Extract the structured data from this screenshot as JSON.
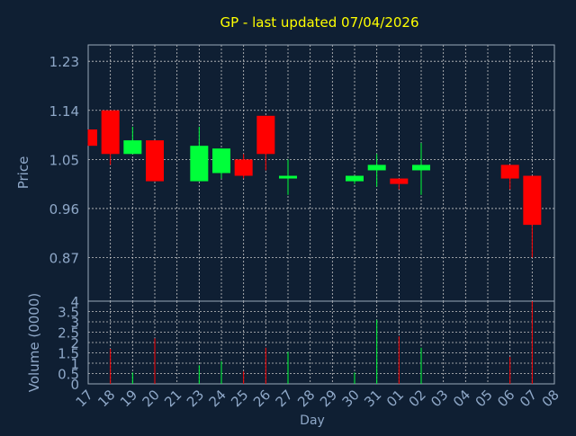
{
  "chart_data": {
    "type": "candlestick",
    "title": "GP - last updated 07/04/2026",
    "xlabel": "Day",
    "x_ticks": [
      "17",
      "18",
      "19",
      "20",
      "21",
      "23",
      "24",
      "25",
      "26",
      "27",
      "28",
      "29",
      "30",
      "31",
      "01",
      "02",
      "03",
      "04",
      "05",
      "06",
      "07",
      "08"
    ],
    "price": {
      "ylabel": "Price",
      "y_ticks": [
        "1.23",
        "1.14",
        "1.05",
        "0.96",
        "0.87"
      ],
      "ylim": [
        0.79,
        1.26
      ],
      "candles": [
        {
          "day": "17",
          "open": 1.105,
          "high": 1.105,
          "low": 1.075,
          "close": 1.075,
          "direction": "down"
        },
        {
          "day": "18",
          "open": 1.14,
          "high": 1.14,
          "low": 1.04,
          "close": 1.06,
          "direction": "down"
        },
        {
          "day": "19",
          "open": 1.06,
          "high": 1.11,
          "low": 1.06,
          "close": 1.085,
          "direction": "up"
        },
        {
          "day": "20",
          "open": 1.085,
          "high": 1.085,
          "low": 1.01,
          "close": 1.01,
          "direction": "down"
        },
        {
          "day": "23",
          "open": 1.01,
          "high": 1.11,
          "low": 1.01,
          "close": 1.075,
          "direction": "up"
        },
        {
          "day": "24",
          "open": 1.025,
          "high": 1.07,
          "low": 1.015,
          "close": 1.07,
          "direction": "up"
        },
        {
          "day": "25",
          "open": 1.05,
          "high": 1.06,
          "low": 1.015,
          "close": 1.02,
          "direction": "down"
        },
        {
          "day": "26",
          "open": 1.13,
          "high": 1.13,
          "low": 1.03,
          "close": 1.06,
          "direction": "down"
        },
        {
          "day": "27",
          "open": 1.015,
          "high": 1.05,
          "low": 0.985,
          "close": 1.02,
          "direction": "up"
        },
        {
          "day": "30",
          "open": 1.01,
          "high": 1.02,
          "low": 1.005,
          "close": 1.02,
          "direction": "up"
        },
        {
          "day": "31",
          "open": 1.03,
          "high": 1.06,
          "low": 1.0,
          "close": 1.04,
          "direction": "up"
        },
        {
          "day": "01",
          "open": 1.015,
          "high": 1.015,
          "low": 0.995,
          "close": 1.005,
          "direction": "down"
        },
        {
          "day": "02",
          "open": 1.03,
          "high": 1.08,
          "low": 0.985,
          "close": 1.04,
          "direction": "up"
        },
        {
          "day": "06",
          "open": 1.04,
          "high": 1.04,
          "low": 0.995,
          "close": 1.015,
          "direction": "down"
        },
        {
          "day": "07",
          "open": 1.02,
          "high": 1.02,
          "low": 0.87,
          "close": 0.93,
          "direction": "down"
        }
      ]
    },
    "volume": {
      "ylabel": "Volume (0000)",
      "y_ticks": [
        "4",
        "3.5",
        "3",
        "2.5",
        "2",
        "1.5",
        "1",
        "0.5",
        "0"
      ],
      "ylim": [
        0,
        4
      ],
      "bars": [
        {
          "day": "18",
          "value": 1.7,
          "direction": "down"
        },
        {
          "day": "19",
          "value": 0.55,
          "direction": "up"
        },
        {
          "day": "20",
          "value": 2.2,
          "direction": "down"
        },
        {
          "day": "23",
          "value": 0.9,
          "direction": "up"
        },
        {
          "day": "24",
          "value": 1.1,
          "direction": "up"
        },
        {
          "day": "25",
          "value": 0.6,
          "direction": "down"
        },
        {
          "day": "26",
          "value": 1.75,
          "direction": "down"
        },
        {
          "day": "27",
          "value": 1.55,
          "direction": "up"
        },
        {
          "day": "30",
          "value": 0.55,
          "direction": "up"
        },
        {
          "day": "31",
          "value": 3.1,
          "direction": "up"
        },
        {
          "day": "01",
          "value": 2.3,
          "direction": "down"
        },
        {
          "day": "02",
          "value": 1.75,
          "direction": "up"
        },
        {
          "day": "06",
          "value": 1.3,
          "direction": "down"
        },
        {
          "day": "07",
          "value": 4.0,
          "direction": "down"
        }
      ]
    },
    "grid": true,
    "colors": {
      "background": "#0f1f33",
      "up": "#00ff3a",
      "down": "#ff0000",
      "title": "#ffff00",
      "axis_text": "#8fa8c8",
      "grid": "#c8c8c8"
    }
  }
}
